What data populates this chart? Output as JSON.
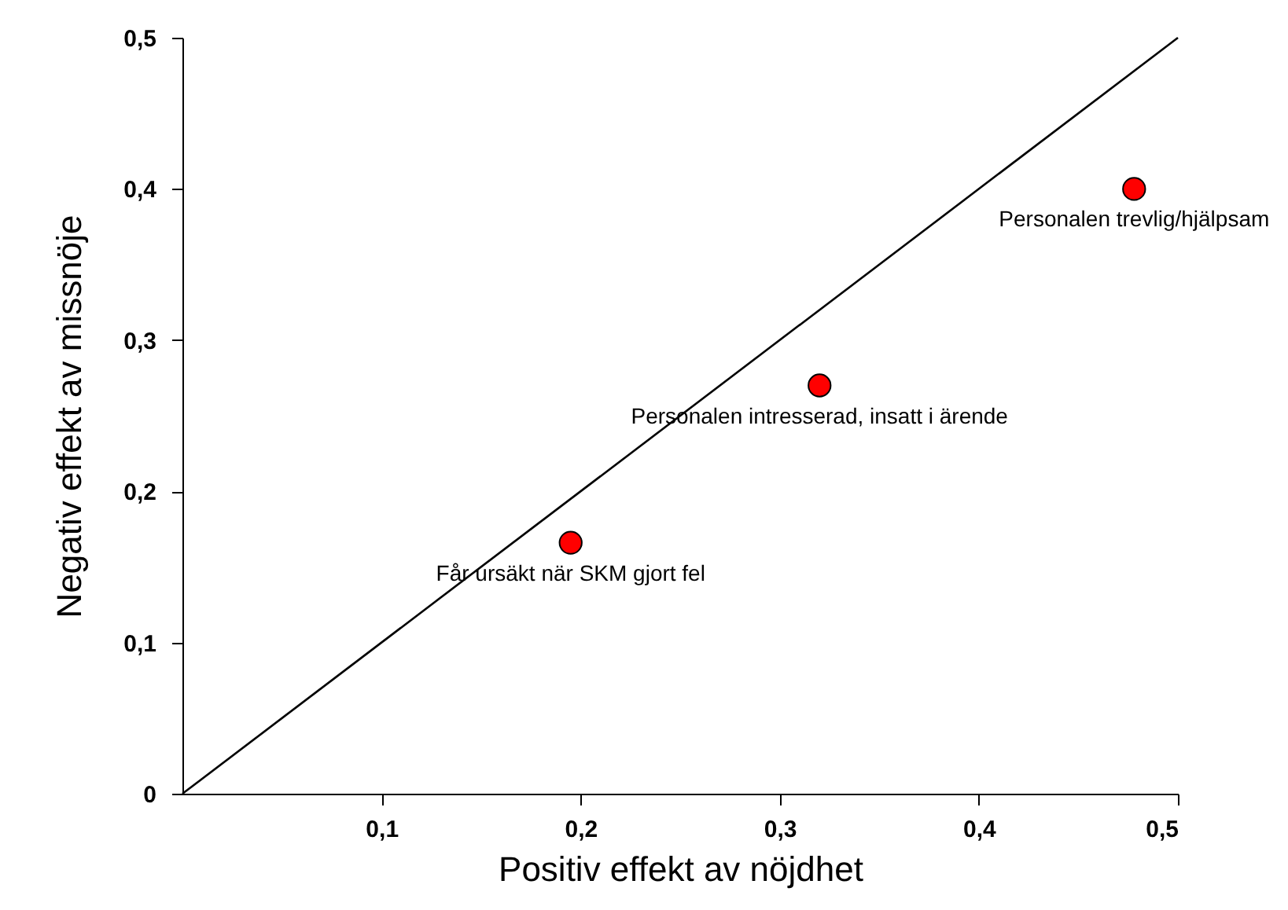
{
  "chart_data": {
    "type": "scatter",
    "xlabel": "Positiv effekt av nöjdhet",
    "ylabel": "Negativ effekt av missnöje",
    "xlim": [
      0,
      0.5
    ],
    "ylim": [
      0,
      0.5
    ],
    "xticks": [
      {
        "value": 0.1,
        "label": "0,1"
      },
      {
        "value": 0.2,
        "label": "0,2"
      },
      {
        "value": 0.3,
        "label": "0,3"
      },
      {
        "value": 0.4,
        "label": "0,4"
      },
      {
        "value": 0.5,
        "label": "0,5"
      }
    ],
    "yticks": [
      0,
      {
        "value": 0.1,
        "label": "0,1"
      },
      {
        "value": 0.2,
        "label": "0,2"
      },
      {
        "value": 0.3,
        "label": "0,3"
      },
      {
        "value": 0.4,
        "label": "0,4"
      },
      {
        "value": 0.5,
        "label": "0,5"
      }
    ],
    "grid": false,
    "series": [
      {
        "marker": "circle",
        "color": "#ff0000",
        "x": [
          0.195,
          0.32,
          0.478
        ],
        "values": [
          0.166,
          0.27,
          0.4
        ]
      },
      {
        "type": "line",
        "color": "#000000",
        "x": [
          0,
          0.5
        ],
        "values": [
          0,
          0.5
        ]
      }
    ],
    "annotations": [
      {
        "text": "Får ursäkt när SKM gjort fel",
        "x": 0.195,
        "y": 0.166
      },
      {
        "text": "Personalen intresserad, insatt i ärende",
        "x": 0.32,
        "y": 0.27
      },
      {
        "text": "Personalen trevlig/hjälpsam",
        "x": 0.478,
        "y": 0.4
      }
    ]
  }
}
